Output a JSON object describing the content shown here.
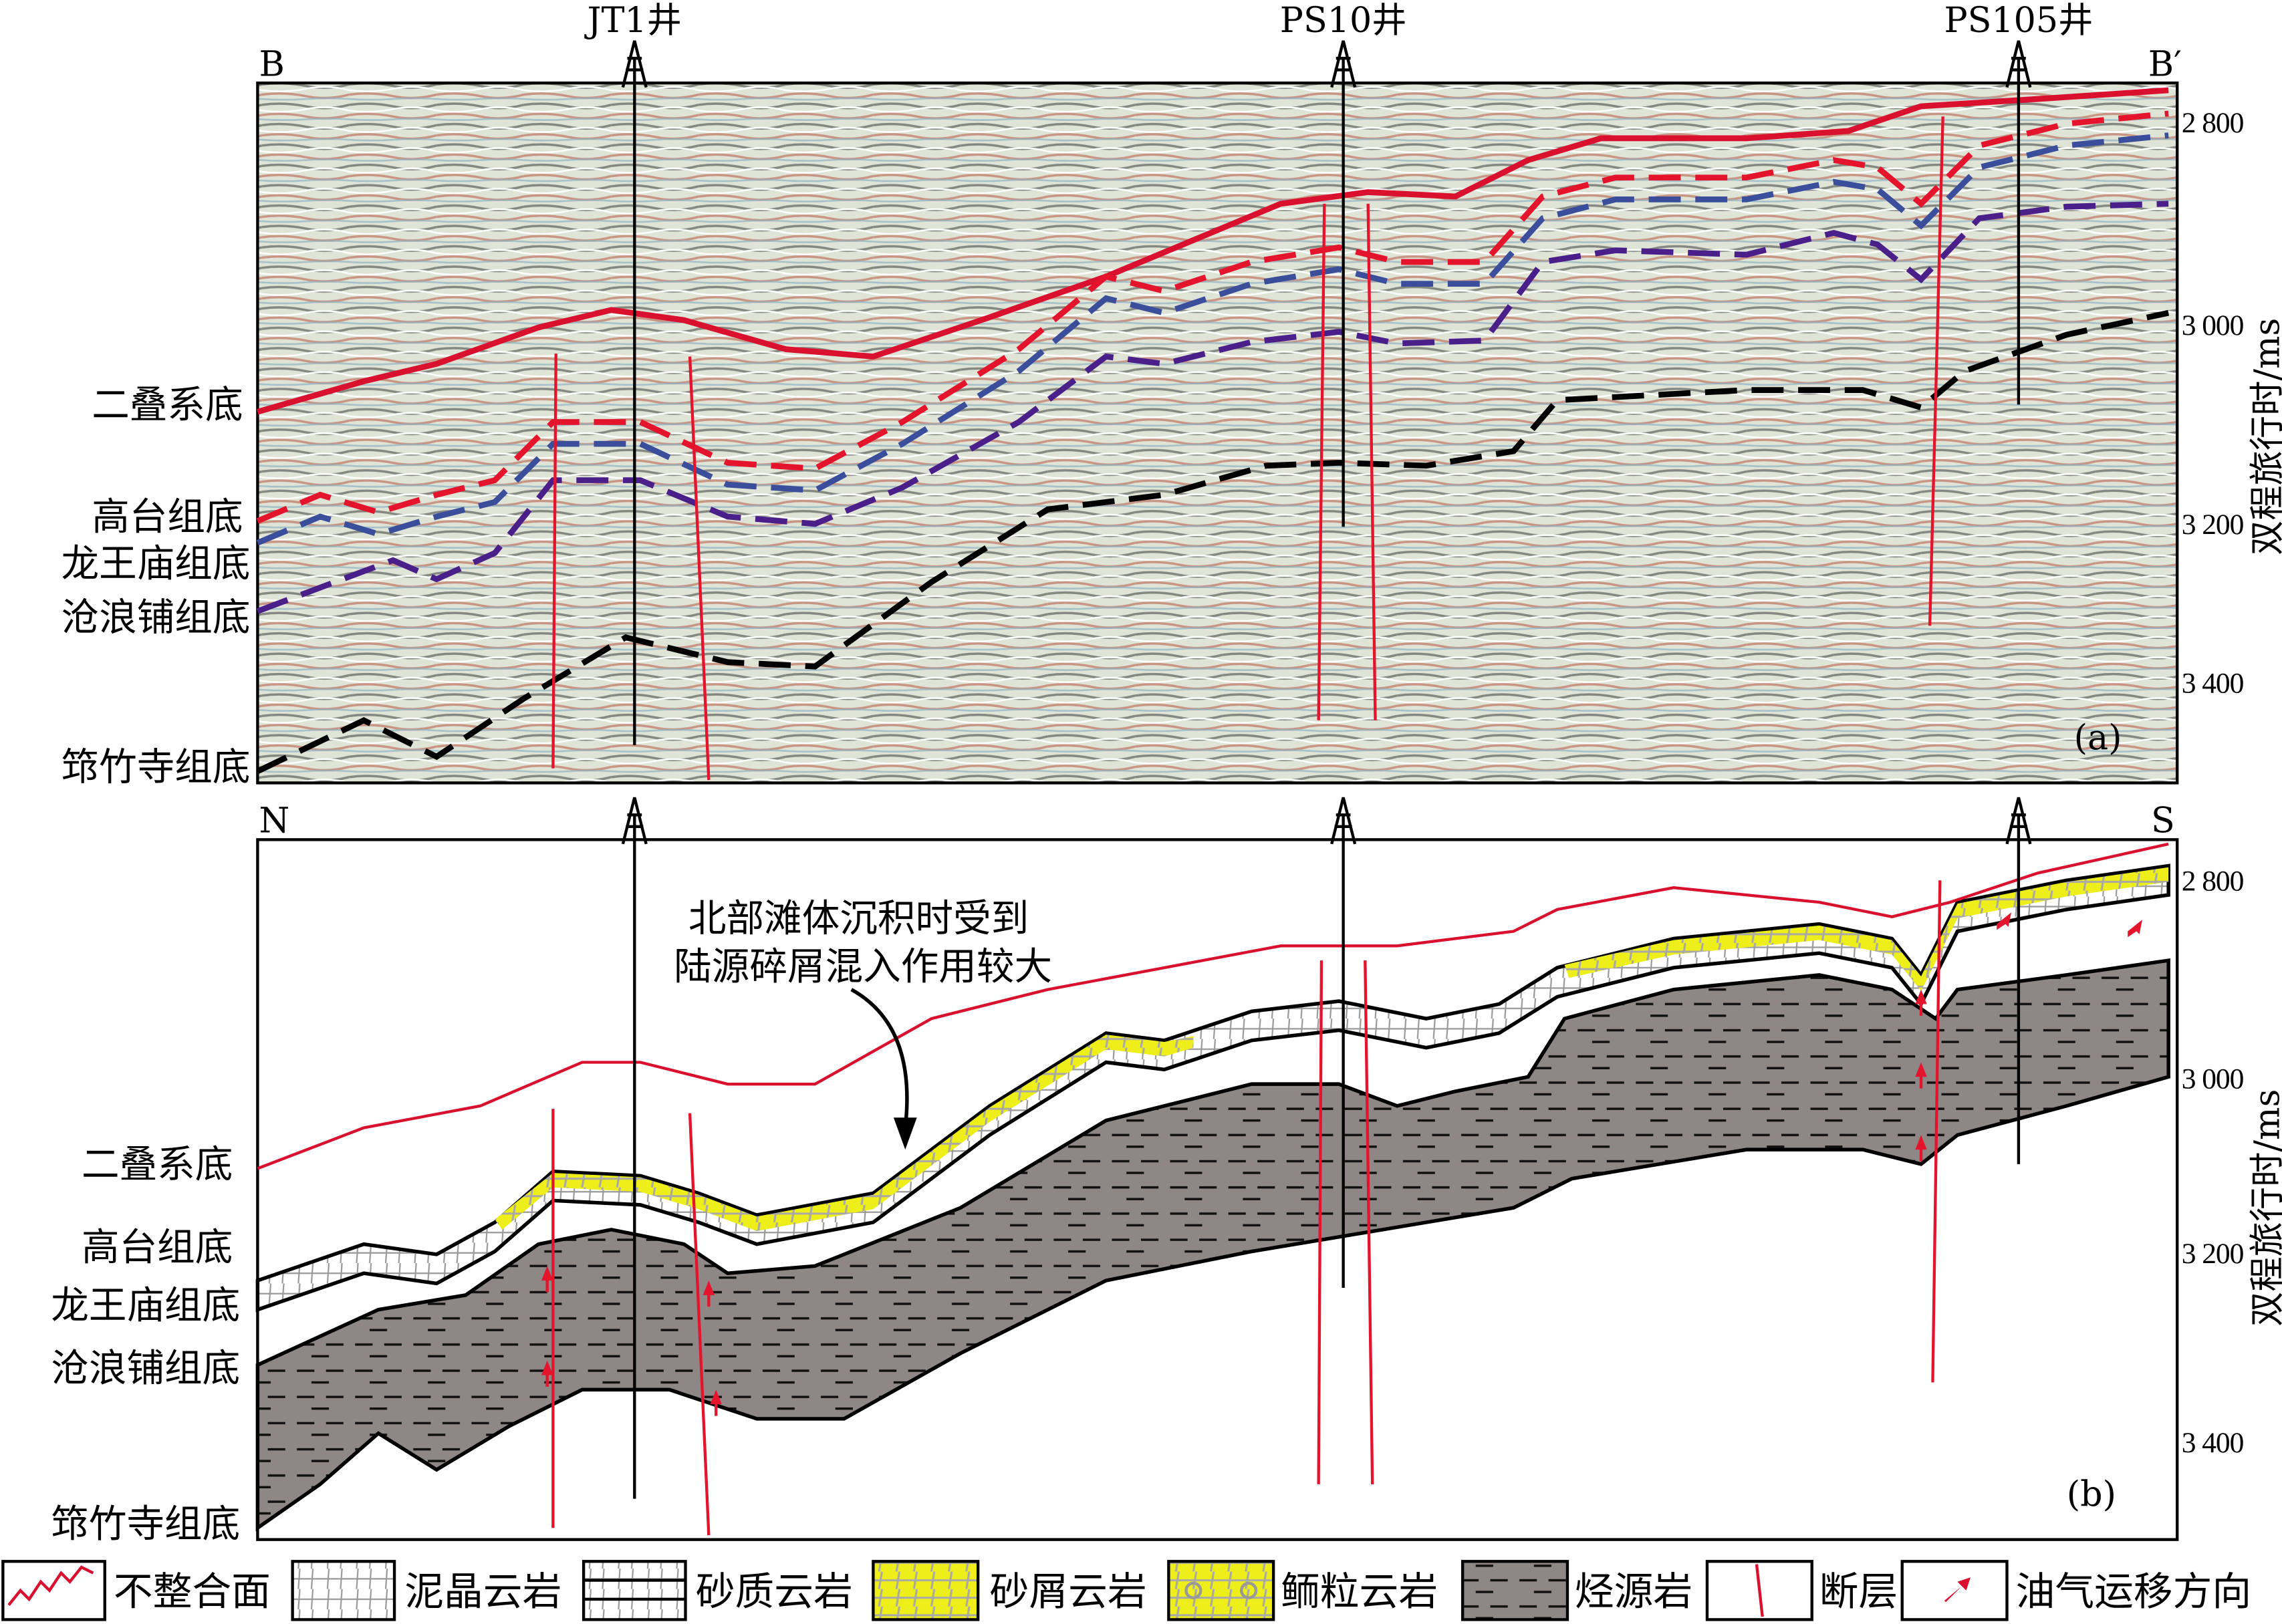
{
  "panel_a": {
    "left_end": "B",
    "right_end": "B′",
    "tag": "(a)",
    "wells": [
      "JT1井",
      "PS10井",
      "PS105井"
    ],
    "horizons": [
      "二叠系底",
      "高台组底",
      "龙王庙组底",
      "沧浪铺组底",
      "筇竹寺组底"
    ],
    "axis_label": "双程旅行时/ms",
    "ticks": [
      "2 800",
      "3 000",
      "3 200",
      "3 400"
    ]
  },
  "panel_b": {
    "left_end": "N",
    "right_end": "S",
    "tag": "(b)",
    "horizons": [
      "二叠系底",
      "高台组底",
      "龙王庙组底",
      "沧浪铺组底",
      "筇竹寺组底"
    ],
    "axis_label": "双程旅行时/ms",
    "ticks": [
      "2 800",
      "3 000",
      "3 200",
      "3 400"
    ],
    "annotation_line1": "北部滩体沉积时受到",
    "annotation_line2": "陆源碎屑混入作用较大"
  },
  "legend": [
    {
      "label": "不整合面",
      "icon": "unconformity-icon"
    },
    {
      "label": "泥晶云岩",
      "icon": "micritic-dolomite-icon"
    },
    {
      "label": "砂质云岩",
      "icon": "sandy-dolomite-icon"
    },
    {
      "label": "砂屑云岩",
      "icon": "calcarenite-dolomite-icon"
    },
    {
      "label": "鲕粒云岩",
      "icon": "oolitic-dolomite-icon"
    },
    {
      "label": "烃源岩",
      "icon": "source-rock-icon"
    },
    {
      "label": "断层",
      "icon": "fault-icon"
    },
    {
      "label": "油气运移方向",
      "icon": "migration-arrow-icon"
    }
  ],
  "colors": {
    "unconformity": "#d9112f",
    "gaotai": "#e3142c",
    "longwangmiao": "#3a4e9c",
    "canglangpu": "#4b1f8a",
    "qiongzhusi": "#000000",
    "source_rock": "#8f8686",
    "sand": "#f0f000"
  }
}
